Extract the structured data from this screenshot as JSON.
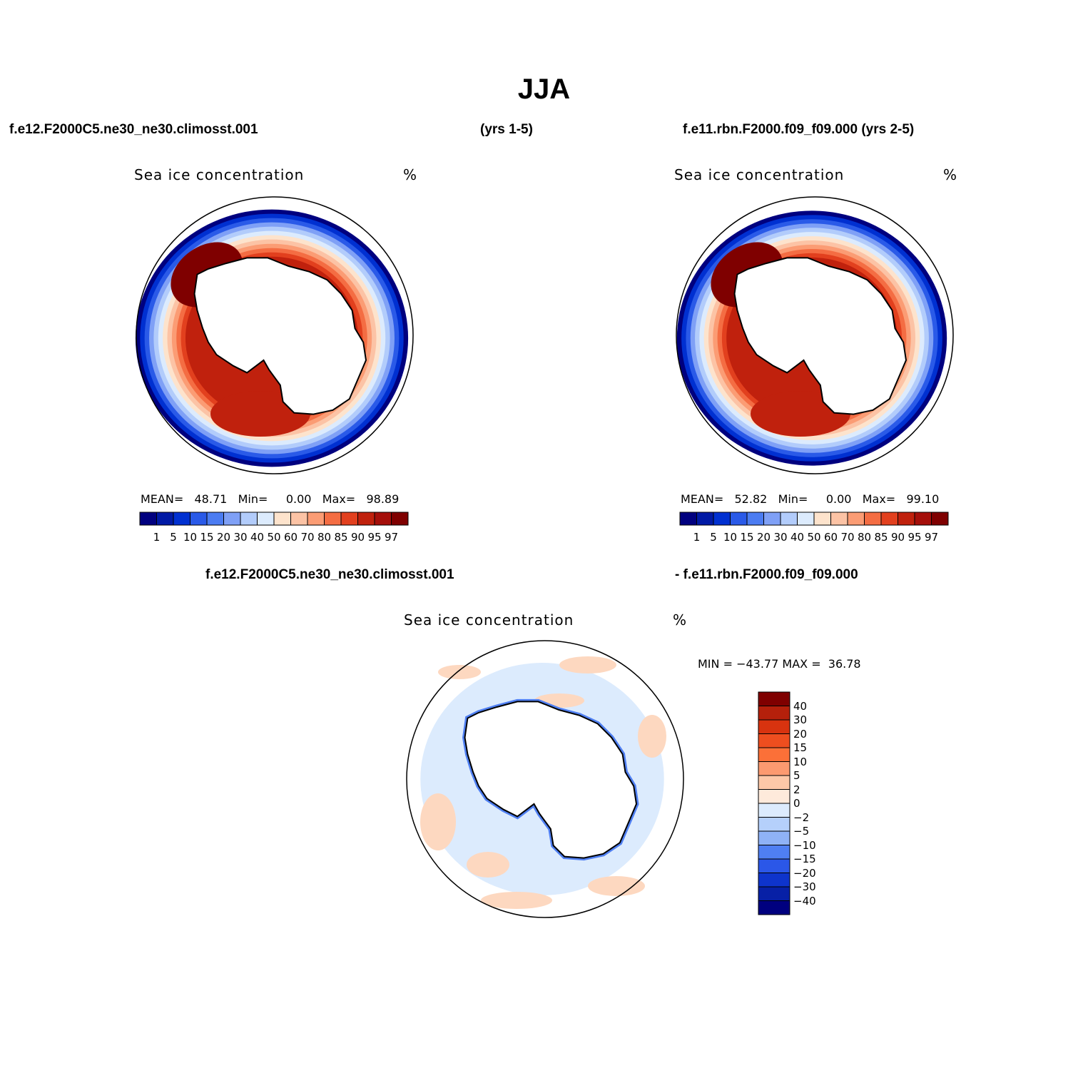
{
  "figure": {
    "season_title": "JJA",
    "case1_label": "f.e12.F2000C5.ne30_ne30.climosst.001",
    "case1_years": "(yrs 1-5)",
    "case2_label": "f.e11.rbn.F2000.f09_f09.000 (yrs 2-5)",
    "diff_case1_label": "f.e12.F2000C5.ne30_ne30.climosst.001",
    "diff_case2_label": "- f.e11.rbn.F2000.f09_f09.000"
  },
  "panels": [
    {
      "variable": "Sea ice concentration",
      "units": "%",
      "mean_label": "MEAN=",
      "mean_value": "48.71",
      "min_label": "Min=",
      "min_value": "0.00",
      "max_label": "Max=",
      "max_value": "98.89"
    },
    {
      "variable": "Sea ice concentration",
      "units": "%",
      "mean_label": "MEAN=",
      "mean_value": "52.82",
      "min_label": "Min=",
      "min_value": "0.00",
      "max_label": "Max=",
      "max_value": "99.10"
    },
    {
      "variable": "Sea ice concentration",
      "units": "%",
      "min_label": "MIN =",
      "min_value": "−43.77",
      "max_label": "MAX =",
      "max_value": "36.78"
    }
  ],
  "colorbar_abs": {
    "levels": [
      "1",
      "5",
      "10",
      "15",
      "20",
      "30",
      "40",
      "50",
      "60",
      "70",
      "80",
      "85",
      "90",
      "95",
      "97"
    ],
    "colors": [
      "#00007f",
      "#0019a5",
      "#0030d1",
      "#2a5ae8",
      "#4b7cf2",
      "#7fa0f6",
      "#b2ccfb",
      "#dcebfd",
      "#fde3cc",
      "#fcc3a5",
      "#fb9c74",
      "#f46d43",
      "#e2401e",
      "#c0210d",
      "#a50f0a",
      "#7f0000"
    ]
  },
  "colorbar_diff": {
    "levels": [
      "40",
      "30",
      "20",
      "15",
      "10",
      "5",
      "2",
      "0",
      "−2",
      "−5",
      "−10",
      "−15",
      "−20",
      "−30",
      "−40"
    ],
    "colors": [
      "#7f0000",
      "#b5200b",
      "#d8330f",
      "#ee4e1f",
      "#fb7038",
      "#fc9a70",
      "#fdc8a8",
      "#feeadb",
      "#dcebfd",
      "#b5d0fb",
      "#8fb2f6",
      "#4f7ff2",
      "#2b57e8",
      "#0e34cc",
      "#0720a6",
      "#00007f"
    ]
  },
  "map_colors": {
    "outer_ring": [
      "#00007f",
      "#0030d1",
      "#2a5ae8",
      "#7fa0f6",
      "#b2ccfb",
      "#dcebfd",
      "#fde3cc",
      "#fcc3a5",
      "#fb9c74",
      "#f46d43",
      "#e2401e",
      "#c0210d"
    ],
    "core_high": "#7f0000",
    "diff_base": "#dcebfd",
    "diff_pos": "#fdd8c0",
    "diff_neg": "#4f7ff2"
  }
}
